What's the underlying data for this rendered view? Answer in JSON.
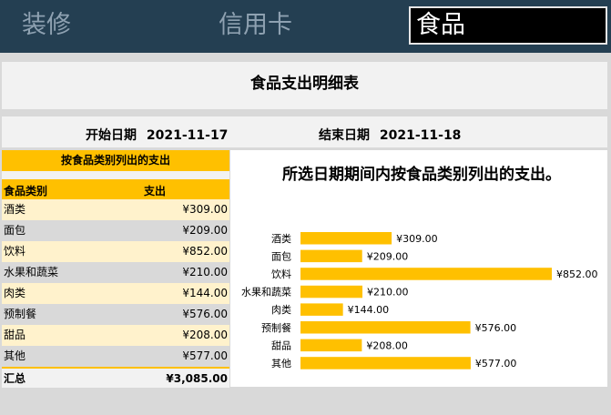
{
  "tabs": [
    {
      "label": "装修"
    },
    {
      "label": "信用卡"
    },
    {
      "label": "食品"
    }
  ],
  "page_title": "食品支出明细表",
  "dates": {
    "start_label": "开始日期",
    "start_value": "2021-11-17",
    "end_label": "结束日期",
    "end_value": "2021-11-18"
  },
  "table": {
    "title": "按食品类别列出的支出",
    "col_category": "食品类别",
    "col_amount": "支出",
    "rows": [
      {
        "category": "酒类",
        "amount": "¥309.00"
      },
      {
        "category": "面包",
        "amount": "¥209.00"
      },
      {
        "category": "饮料",
        "amount": "¥852.00"
      },
      {
        "category": "水果和蔬菜",
        "amount": "¥210.00"
      },
      {
        "category": "肉类",
        "amount": "¥144.00"
      },
      {
        "category": "预制餐",
        "amount": "¥576.00"
      },
      {
        "category": "甜品",
        "amount": "¥208.00"
      },
      {
        "category": "其他",
        "amount": "¥577.00"
      }
    ],
    "total_label": "汇总",
    "total_value": "¥3,085.00"
  },
  "chart_data": {
    "type": "bar",
    "orientation": "horizontal",
    "title": "所选日期期间内按食品类别列出的支出。",
    "categories": [
      "酒类",
      "面包",
      "饮料",
      "水果和蔬菜",
      "肉类",
      "预制餐",
      "甜品",
      "其他"
    ],
    "values": [
      309,
      209,
      852,
      210,
      144,
      576,
      208,
      577
    ],
    "value_labels": [
      "¥309.00",
      "¥209.00",
      "¥852.00",
      "¥210.00",
      "¥144.00",
      "¥576.00",
      "¥208.00",
      "¥577.00"
    ],
    "xlim": [
      0,
      852
    ],
    "grid": false,
    "bar_color": "#ffc000"
  },
  "colors": {
    "tabbar": "#243f52",
    "accent": "#ffc000",
    "row_alt": "#fff2cc"
  }
}
